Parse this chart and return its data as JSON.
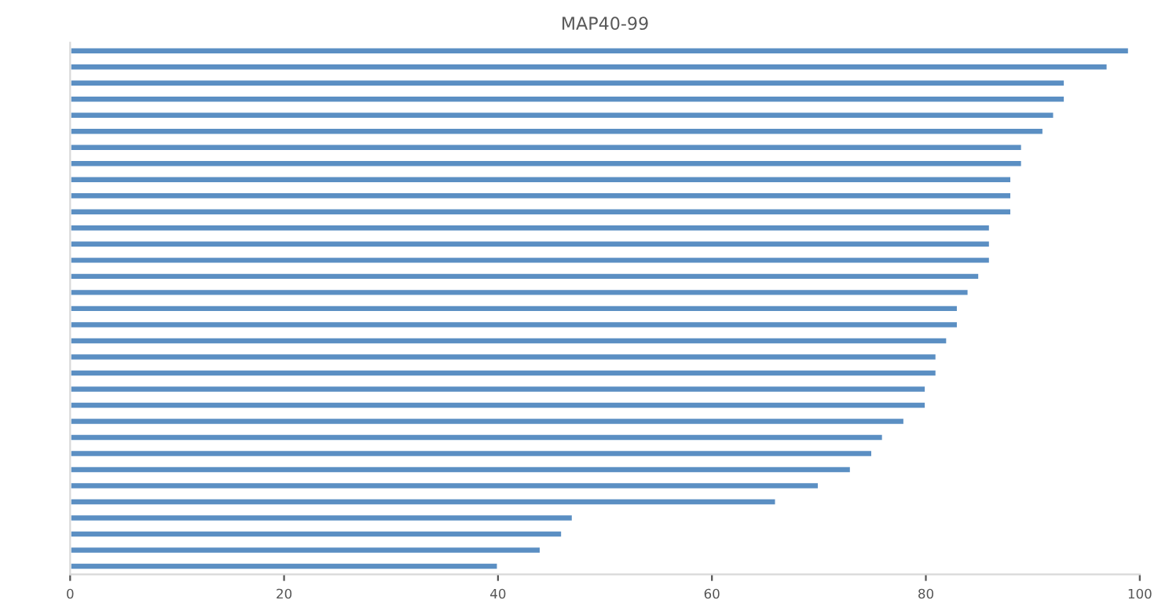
{
  "chart_data": {
    "type": "bar",
    "orientation": "horizontal",
    "title": "MAP40-99",
    "categories": [
      null,
      null,
      null,
      null,
      null,
      null,
      null,
      null,
      null,
      null,
      null,
      null,
      null,
      null,
      null,
      null,
      null,
      null,
      null,
      null,
      null,
      null,
      null,
      null,
      null,
      null,
      null,
      null,
      null,
      null,
      null,
      null,
      null
    ],
    "values": [
      99,
      97,
      93,
      93,
      92,
      91,
      89,
      89,
      88,
      88,
      88,
      86,
      86,
      86,
      85,
      84,
      83,
      83,
      82,
      81,
      81,
      80,
      80,
      78,
      76,
      75,
      73,
      70,
      66,
      47,
      46,
      44,
      40
    ],
    "color": "#5b8fc3",
    "xlim": [
      0,
      100
    ],
    "xticks": [
      0,
      20,
      40,
      60,
      80,
      100
    ],
    "grid": false
  }
}
